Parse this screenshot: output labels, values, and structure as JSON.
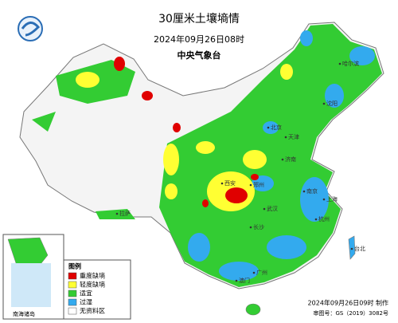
{
  "header": {
    "title": "30厘米土壤墒情",
    "time": "2024年09月26日08时",
    "issuer": "中央气象台"
  },
  "legend": {
    "title": "图例",
    "items": [
      {
        "label": "重度缺墒",
        "color": "#e00000"
      },
      {
        "label": "轻度缺墒",
        "color": "#ffff33"
      },
      {
        "label": "适宜",
        "color": "#33cc33"
      },
      {
        "label": "过湿",
        "color": "#33aaee"
      },
      {
        "label": "无资料区",
        "color": "#ffffff"
      }
    ]
  },
  "places": [
    "北京",
    "天津",
    "济南",
    "郑州",
    "武汉",
    "上海",
    "杭州",
    "南京",
    "长沙",
    "广州",
    "澳门",
    "台北",
    "拉萨",
    "西安",
    "沈阳",
    "哈尔滨"
  ],
  "inset": {
    "label": "南海诸岛"
  },
  "footer": {
    "made": "2024年09月26日09时 制作",
    "approval": "审图号：GS（2019）3082号"
  }
}
